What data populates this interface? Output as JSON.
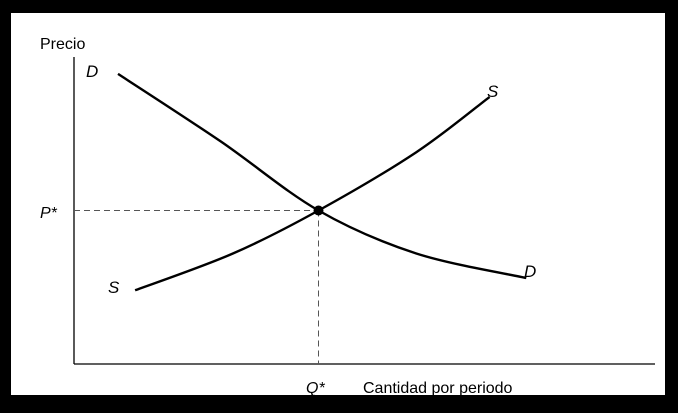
{
  "chart_data": {
    "type": "line",
    "ylabel": "Precio",
    "xlabel": "Cantidad por periodo",
    "x_ticks": [
      {
        "label": "Q*",
        "value": 1
      }
    ],
    "y_ticks": [
      {
        "label": "P*",
        "value": 1
      }
    ],
    "xlim": [
      0,
      2
    ],
    "ylim": [
      0,
      2
    ],
    "grid": false,
    "series": [
      {
        "name": "D",
        "start_label": "D",
        "end_label": "D",
        "points": [
          [
            0.18,
            1.89
          ],
          [
            0.6,
            1.45
          ],
          [
            1.0,
            1.0
          ],
          [
            1.4,
            0.72
          ],
          [
            1.85,
            0.56
          ]
        ]
      },
      {
        "name": "S",
        "start_label": "S",
        "end_label": "S",
        "points": [
          [
            0.25,
            0.48
          ],
          [
            0.65,
            0.72
          ],
          [
            1.0,
            1.0
          ],
          [
            1.4,
            1.38
          ],
          [
            1.7,
            1.74
          ]
        ]
      }
    ],
    "equilibrium": {
      "x": 1,
      "y": 1
    }
  },
  "colors": {
    "frame": "#000000",
    "background": "#ffffff",
    "lines": "#000000",
    "guides": "#555555"
  }
}
